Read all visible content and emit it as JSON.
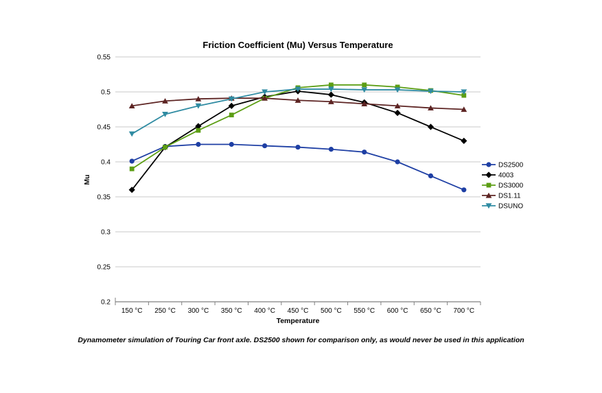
{
  "chart_data": {
    "type": "line",
    "title": "Friction Coefficient (Mu) Versus Temperature",
    "xlabel": "Temperature",
    "ylabel": "Mu",
    "categories": [
      "150 °C",
      "250 °C",
      "300 °C",
      "350 °C",
      "400 °C",
      "450 °C",
      "500 °C",
      "550 °C",
      "600 °C",
      "650 °C",
      "700 °C"
    ],
    "ylim": [
      0.2,
      0.55
    ],
    "ytick_step": 0.05,
    "grid": true,
    "legend_position": "right",
    "colors": {
      "gridline": "#c9c9c9",
      "axis": "#808080",
      "text": "#000000"
    },
    "series": [
      {
        "name": "DS2500",
        "color": "#1E3FA4",
        "marker": "circle",
        "values": [
          0.401,
          0.422,
          0.425,
          0.425,
          0.423,
          0.421,
          0.418,
          0.414,
          0.4,
          0.38,
          0.36
        ]
      },
      {
        "name": "4003",
        "color": "#000000",
        "marker": "diamond",
        "values": [
          0.36,
          0.421,
          0.451,
          0.48,
          0.493,
          0.501,
          0.496,
          0.485,
          0.47,
          0.45,
          0.43
        ]
      },
      {
        "name": "DS3000",
        "color": "#5C9E14",
        "marker": "square",
        "values": [
          0.39,
          0.421,
          0.445,
          0.467,
          0.491,
          0.506,
          0.51,
          0.51,
          0.507,
          0.502,
          0.495
        ]
      },
      {
        "name": "DS1.11",
        "color": "#5D2423",
        "marker": "triangle-up",
        "values": [
          0.48,
          0.487,
          0.49,
          0.491,
          0.491,
          0.488,
          0.486,
          0.483,
          0.48,
          0.477,
          0.475
        ]
      },
      {
        "name": "DSUNO",
        "color": "#2F8BA2",
        "marker": "triangle-down",
        "values": [
          0.44,
          0.468,
          0.48,
          0.49,
          0.5,
          0.504,
          0.504,
          0.503,
          0.503,
          0.501,
          0.5
        ]
      }
    ]
  },
  "caption": "Dynamometer simulation of Touring Car front axle. DS2500 shown for comparison only, as would never be used in this application"
}
